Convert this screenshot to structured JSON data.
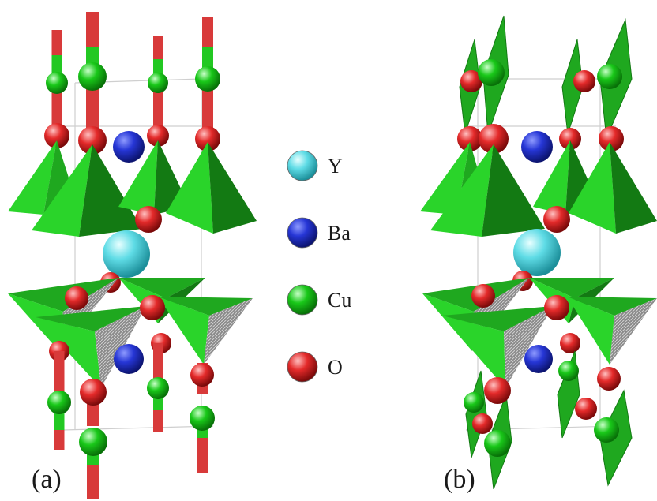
{
  "panels": [
    {
      "label": "(a)"
    },
    {
      "label": "(b)"
    }
  ],
  "legend": [
    {
      "symbol": "Y",
      "color": "#5fdce6"
    },
    {
      "symbol": "Ba",
      "color": "#2636d6"
    },
    {
      "symbol": "Cu",
      "color": "#19c819"
    },
    {
      "symbol": "O",
      "color": "#e42a2a"
    }
  ],
  "colors": {
    "pyramid_light": "#2ad42a",
    "pyramid_mid": "#1fa81f",
    "pyramid_dark": "#137a13",
    "bond_red": "#d83a3a",
    "bond_green": "#22c822",
    "cell_line": "#cfcfcf"
  }
}
